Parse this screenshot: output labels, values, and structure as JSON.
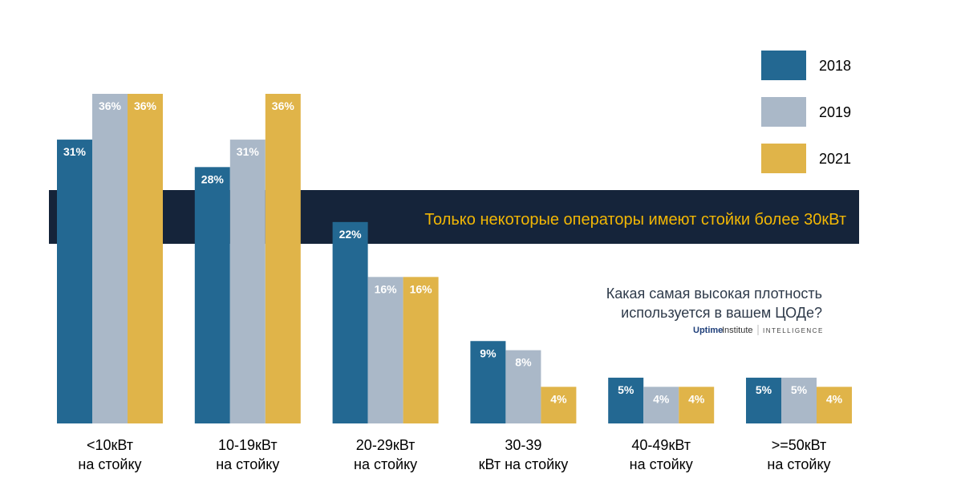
{
  "chart_data": {
    "type": "bar",
    "title": "Какая самая высокая плотность используется в вашем ЦОДе?",
    "title_lines": [
      "Какая самая высокая плотность",
      "используется в вашем ЦОДе?"
    ],
    "banner": "Только некоторые операторы имеют стойки более 30кВт",
    "source": {
      "brand_bold": "Uptime",
      "brand_light": "Institute",
      "suffix": "INTELLIGENCE"
    },
    "categories": [
      [
        "<10кВт",
        "на стойку"
      ],
      [
        "10-19кВт",
        "на стойку"
      ],
      [
        "20-29кВт",
        "на стойку"
      ],
      [
        "30-39",
        "кВт на стойку"
      ],
      [
        "40-49кВт",
        "на стойку"
      ],
      [
        ">=50кВт",
        "на стойку"
      ]
    ],
    "series": [
      {
        "name": "2018",
        "color": "#236892",
        "values": [
          31,
          28,
          22,
          9,
          5,
          5
        ]
      },
      {
        "name": "2019",
        "color": "#aab8c8",
        "values": [
          36,
          31,
          16,
          8,
          4,
          5
        ]
      },
      {
        "name": "2021",
        "color": "#e0b449",
        "values": [
          36,
          36,
          16,
          4,
          4,
          4
        ]
      }
    ],
    "value_suffix": "%",
    "ylim": [
      0,
      36
    ],
    "grid": false,
    "legend": "top-right",
    "colors": {
      "banner": "#15243a",
      "banner_text": "#f2b705",
      "title": "#2e3a4a"
    }
  }
}
